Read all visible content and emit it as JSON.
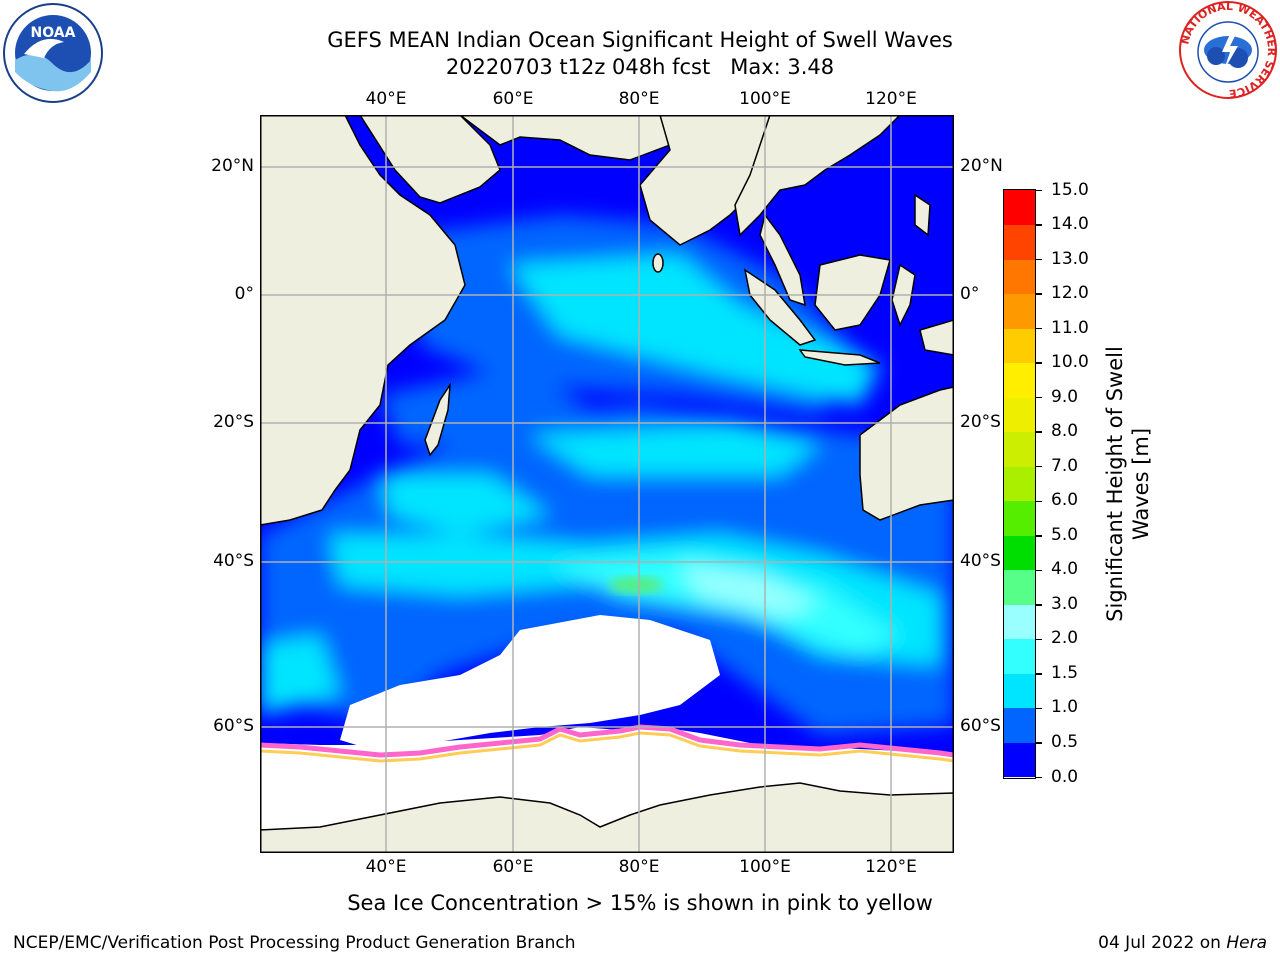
{
  "header": {
    "title_line1": "GEFS MEAN Indian Ocean Significant Height of Swell Waves",
    "title_line2": "20220703 t12z 048h fcst   Max: 3.48"
  },
  "logos": {
    "left": "NOAA",
    "right_ring": "NATIONAL WEATHER SERVICE"
  },
  "map": {
    "lon_ticks_top": [
      "40°E",
      "60°E",
      "80°E",
      "100°E",
      "120°E"
    ],
    "lon_ticks_bottom": [
      "40°E",
      "60°E",
      "80°E",
      "100°E",
      "120°E"
    ],
    "lat_ticks_left": [
      "20°N",
      "0°",
      "20°S",
      "40°S",
      "60°S"
    ],
    "lat_ticks_right": [
      "20°N",
      "0°",
      "20°S",
      "40°S",
      "60°S"
    ],
    "lon_range": [
      20,
      130
    ],
    "lat_range": [
      -77,
      28
    ],
    "land_color": "#efefdf",
    "ice_color": "#ffffff"
  },
  "colorbar": {
    "label": "Significant Height of Swell Waves [m]",
    "ticks": [
      "0.0",
      "0.5",
      "1.0",
      "1.5",
      "2.0",
      "3.0",
      "4.0",
      "5.0",
      "6.0",
      "7.0",
      "8.0",
      "9.0",
      "10.0",
      "11.0",
      "12.0",
      "13.0",
      "14.0",
      "15.0"
    ],
    "colors": [
      "#0000ff",
      "#0066ff",
      "#00e5ff",
      "#33ffff",
      "#99ffff",
      "#55ff88",
      "#00dd00",
      "#55ee00",
      "#aaee00",
      "#ccee00",
      "#eeee00",
      "#ffee00",
      "#ffcc00",
      "#ff9900",
      "#ff7700",
      "#ff4400",
      "#ff0000"
    ]
  },
  "captions": {
    "ice_note": "Sea Ice Concentration > 15% is shown in pink to yellow",
    "credit": "NCEP/EMC/Verification Post Processing Product Generation Branch",
    "date_prefix": "04 Jul 2022 on ",
    "date_host": "Hera"
  }
}
